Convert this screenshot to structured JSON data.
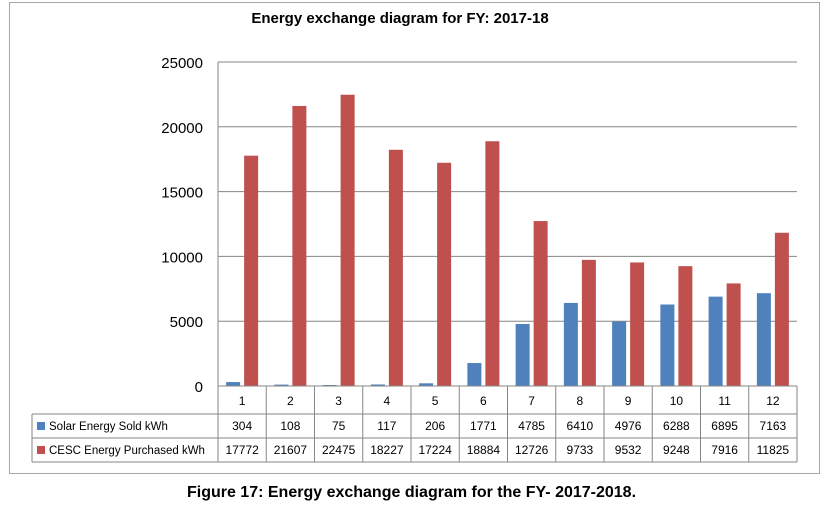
{
  "chart_data": {
    "type": "bar",
    "title": "Energy exchange diagram for FY: 2017-18",
    "categories": [
      "1",
      "2",
      "3",
      "4",
      "5",
      "6",
      "7",
      "8",
      "9",
      "10",
      "11",
      "12"
    ],
    "series": [
      {
        "name": "Solar Energy Sold  kWh",
        "color": "#4f81bd",
        "values": [
          304,
          108,
          75,
          117,
          206,
          1771,
          4785,
          6410,
          4976,
          6288,
          6895,
          7163
        ]
      },
      {
        "name": "CESC Energy  Purchased kWh",
        "color": "#c0504d",
        "values": [
          17772,
          21607,
          22475,
          18227,
          17224,
          18884,
          12726,
          9733,
          9532,
          9248,
          7916,
          11825
        ]
      }
    ],
    "yticks": [
      0,
      5000,
      10000,
      15000,
      20000,
      25000
    ],
    "ylim": [
      0,
      25000
    ],
    "xlabel": "",
    "ylabel": "",
    "legend": "data-table"
  },
  "caption": "Figure 17: Energy exchange diagram for the FY- 2017-2018."
}
